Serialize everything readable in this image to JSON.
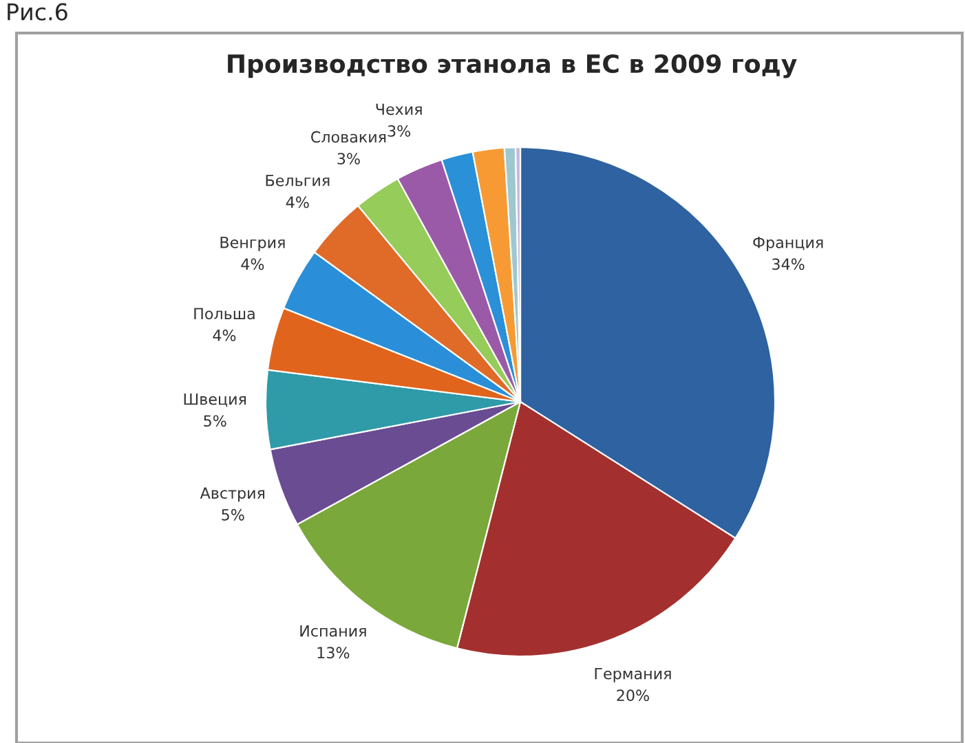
{
  "chart_data": {
    "type": "pie",
    "title": "Производство этанола в ЕС в 2009 году",
    "annotations": [
      "Рис.6"
    ],
    "categories": [
      "Франция",
      "Германия",
      "Испания",
      "Австрия",
      "Швеция",
      "Польша",
      "Венгрия",
      "Бельгия",
      "Словакия",
      "Чехия",
      null,
      null,
      null,
      null
    ],
    "values": [
      34,
      20,
      13,
      5,
      5,
      4,
      4,
      4,
      3,
      3,
      2,
      2,
      0.7,
      0.3
    ],
    "value_labels": [
      "34%",
      "20%",
      "13%",
      "5%",
      "5%",
      "4%",
      "4%",
      "4%",
      "3%",
      "3%",
      null,
      null,
      null,
      null
    ],
    "colors": [
      "#2e62a0",
      "#a3302e",
      "#7aa83a",
      "#6a4c93",
      "#2f9aa8",
      "#e0641c",
      "#2a8fd8",
      "#e06a28",
      "#96cc5a",
      "#9b5aa8",
      "#2a90d8",
      "#f79a34",
      "#9ec8d0",
      "#c8b8dc"
    ],
    "legend": false
  }
}
